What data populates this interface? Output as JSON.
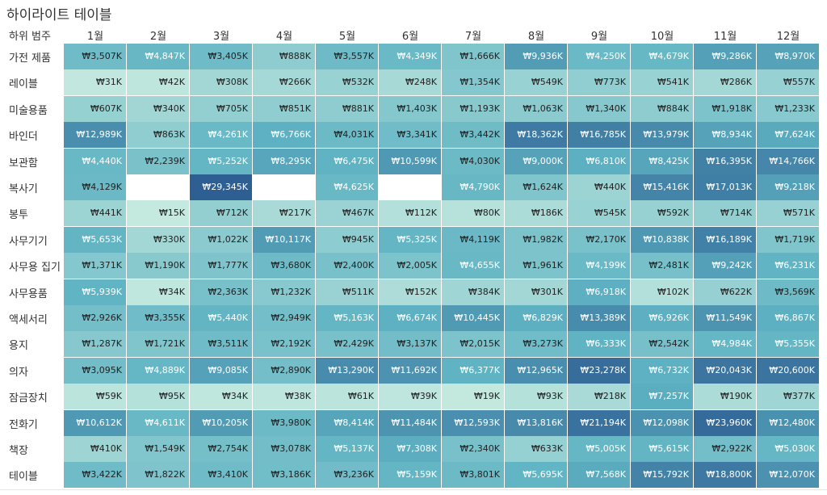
{
  "chart_data": {
    "type": "heatmap",
    "title": "하이라이트 테이블",
    "row_header": "하위 범주",
    "columns": [
      "1월",
      "2월",
      "3월",
      "4월",
      "5월",
      "6월",
      "7월",
      "8월",
      "9월",
      "10월",
      "11월",
      "12월"
    ],
    "rows": [
      {
        "label": "가전 제품",
        "values": [
          3507,
          4847,
          3405,
          888,
          3557,
          4349,
          1666,
          9936,
          4250,
          4679,
          9286,
          8970
        ]
      },
      {
        "label": "레이블",
        "values": [
          31,
          42,
          308,
          266,
          532,
          248,
          1354,
          549,
          773,
          541,
          286,
          557
        ]
      },
      {
        "label": "미술용품",
        "values": [
          607,
          340,
          705,
          851,
          881,
          1403,
          1193,
          1063,
          1340,
          884,
          1918,
          1233
        ]
      },
      {
        "label": "바인더",
        "values": [
          12989,
          863,
          4261,
          6766,
          4031,
          3341,
          3442,
          18362,
          16785,
          13979,
          8934,
          7624
        ]
      },
      {
        "label": "보관함",
        "values": [
          4440,
          2239,
          5252,
          8295,
          6475,
          10599,
          4030,
          9000,
          6810,
          8425,
          16395,
          14766
        ]
      },
      {
        "label": "복사기",
        "values": [
          4129,
          null,
          29345,
          null,
          4625,
          null,
          4790,
          1624,
          440,
          15416,
          17013,
          9218
        ]
      },
      {
        "label": "봉투",
        "values": [
          441,
          15,
          712,
          217,
          467,
          112,
          80,
          186,
          545,
          592,
          714,
          571
        ]
      },
      {
        "label": "사무기기",
        "values": [
          5653,
          330,
          1022,
          10117,
          945,
          5325,
          4119,
          1982,
          2170,
          10838,
          16189,
          1719
        ]
      },
      {
        "label": "사무용 집기",
        "values": [
          1371,
          1190,
          1777,
          3680,
          2400,
          2005,
          4655,
          1961,
          4199,
          2481,
          9242,
          6231
        ]
      },
      {
        "label": "사무용품",
        "values": [
          5939,
          34,
          2363,
          1232,
          511,
          152,
          384,
          301,
          6918,
          102,
          622,
          3569
        ]
      },
      {
        "label": "액세서리",
        "values": [
          2926,
          3355,
          5440,
          2949,
          5163,
          6674,
          10445,
          6829,
          13389,
          6926,
          11549,
          6867
        ]
      },
      {
        "label": "용지",
        "values": [
          1287,
          1721,
          3511,
          2192,
          2429,
          3137,
          2015,
          3273,
          6333,
          2542,
          4984,
          5355
        ]
      },
      {
        "label": "의자",
        "values": [
          3095,
          4889,
          9085,
          2890,
          13290,
          11692,
          6377,
          12965,
          23278,
          6732,
          20043,
          20600
        ]
      },
      {
        "label": "잠금장치",
        "values": [
          59,
          95,
          34,
          38,
          61,
          39,
          19,
          93,
          218,
          7257,
          190,
          377
        ]
      },
      {
        "label": "전화기",
        "values": [
          10612,
          4611,
          10205,
          3980,
          8414,
          11484,
          12593,
          13816,
          21194,
          12098,
          23960,
          12480
        ]
      },
      {
        "label": "책장",
        "values": [
          410,
          1549,
          2754,
          3078,
          5137,
          7308,
          2340,
          633,
          5005,
          5615,
          2922,
          5030
        ]
      },
      {
        "label": "테이블",
        "values": [
          3422,
          1822,
          3410,
          3186,
          3236,
          5159,
          3801,
          5695,
          7568,
          15792,
          18800,
          12070
        ]
      }
    ],
    "value_prefix": "₩",
    "value_suffix": "K",
    "color_low": "#c4e9df",
    "color_mid": "#5fb3c3",
    "color_high": "#2e5f93",
    "range": [
      15,
      29345
    ]
  }
}
